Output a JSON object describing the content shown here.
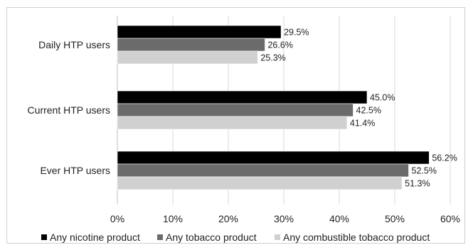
{
  "chart_data": {
    "type": "bar",
    "orientation": "horizontal",
    "title": "",
    "xlabel": "",
    "ylabel": "",
    "categories": [
      "Daily HTP users",
      "Current HTP users",
      "Ever HTP users"
    ],
    "series": [
      {
        "name": "Any nicotine product",
        "color": "#000000",
        "values": [
          29.5,
          45.0,
          56.2
        ],
        "labels": [
          "29.5%",
          "45.0%",
          "56.2%"
        ]
      },
      {
        "name": "Any tobacco product",
        "color": "#6b6b6b",
        "values": [
          26.6,
          42.5,
          52.5
        ],
        "labels": [
          "26.6%",
          "42.5%",
          "52.5%"
        ]
      },
      {
        "name": "Any combustible tobacco product",
        "color": "#d0d0d0",
        "values": [
          25.3,
          41.4,
          51.3
        ],
        "labels": [
          "25.3%",
          "41.4%",
          "51.3%"
        ]
      }
    ],
    "xlim": [
      0,
      60
    ],
    "xticks": [
      0,
      10,
      20,
      30,
      40,
      50,
      60
    ],
    "xtick_labels": [
      "0%",
      "10%",
      "20%",
      "30%",
      "40%",
      "50%",
      "60%"
    ],
    "grid": true,
    "legend_position": "bottom"
  }
}
